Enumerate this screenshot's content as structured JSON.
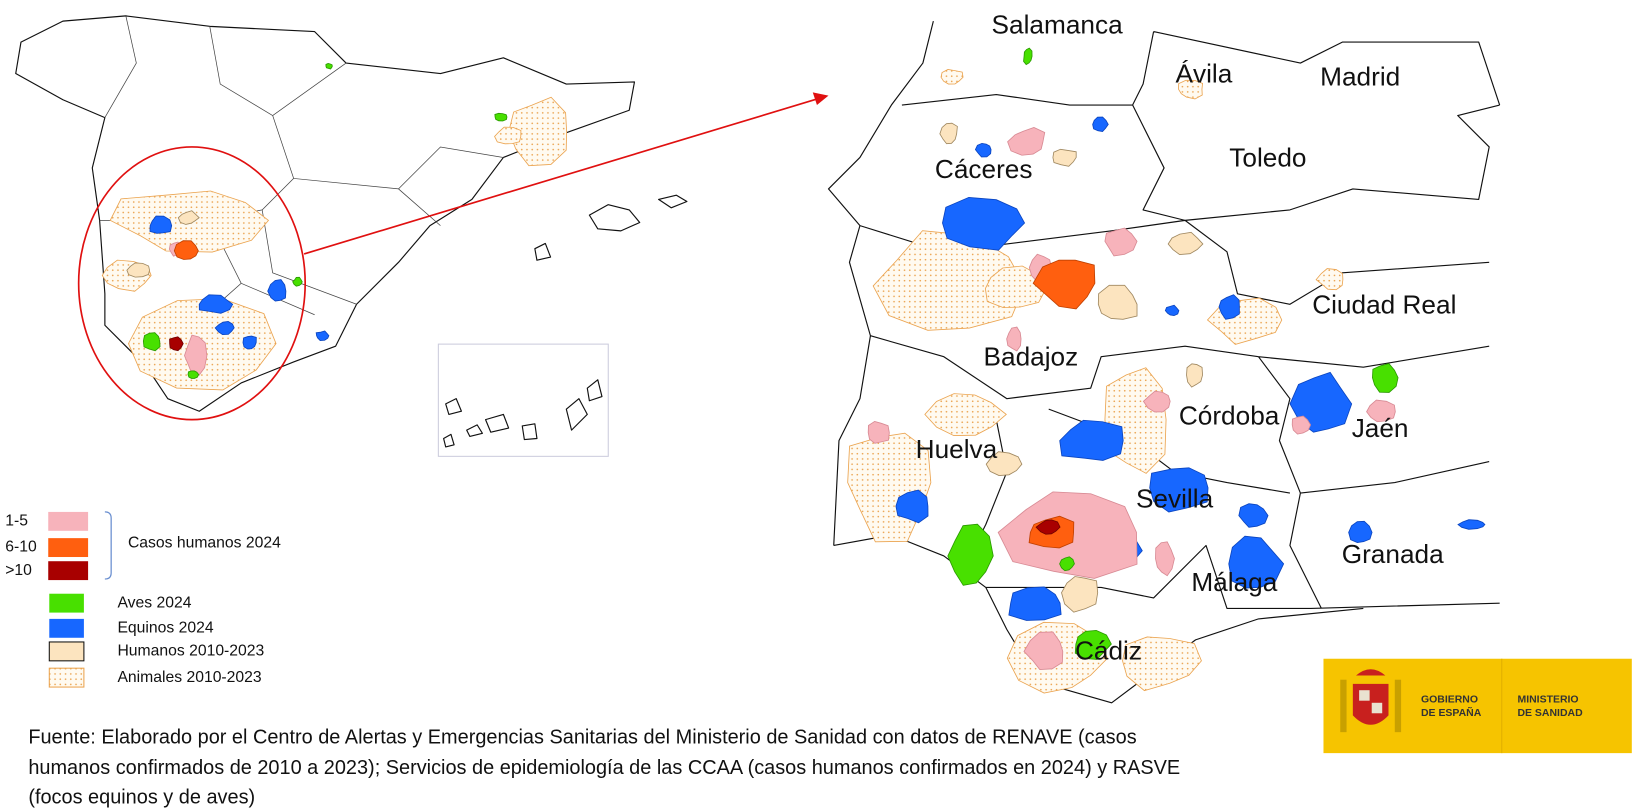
{
  "zoom_map": {
    "labels": [
      "Salamanca",
      "Ávila",
      "Madrid",
      "Cáceres",
      "Toledo",
      "Ciudad Real",
      "Badajoz",
      "Córdoba",
      "Jaén",
      "Huelva",
      "Sevilla",
      "Granada",
      "Málaga",
      "Cádiz"
    ]
  },
  "legend": {
    "human_cases_2024": {
      "title": "Casos humanos 2024",
      "ranges": [
        {
          "label": "1-5",
          "color": "#f7b3bb"
        },
        {
          "label": "6-10",
          "color": "#ff5f0f"
        },
        {
          "label": ">10",
          "color": "#a80000"
        }
      ]
    },
    "items": [
      {
        "label": "Aves 2024",
        "color": "#48e000"
      },
      {
        "label": "Equinos 2024",
        "color": "#1767ff"
      },
      {
        "label": "Humanos 2010-2023",
        "color": "#fce4bf"
      },
      {
        "label": "Animales 2010-2023",
        "color": "#eba450"
      }
    ]
  },
  "source_note": {
    "lines": [
      "Fuente: Elaborado por el Centro de Alertas y Emergencias Sanitarias del Ministerio de Sanidad con datos de RENAVE (casos",
      "humanos confirmados de 2010 a 2023); Servicios de epidemiología de las CCAA (casos humanos confirmados en 2024) y RASVE",
      "(focos equinos y de aves)"
    ]
  },
  "logo": {
    "left": [
      "GOBIERNO",
      "DE ESPAÑA"
    ],
    "right": [
      "MINISTERIO",
      "DE SANIDAD"
    ]
  }
}
